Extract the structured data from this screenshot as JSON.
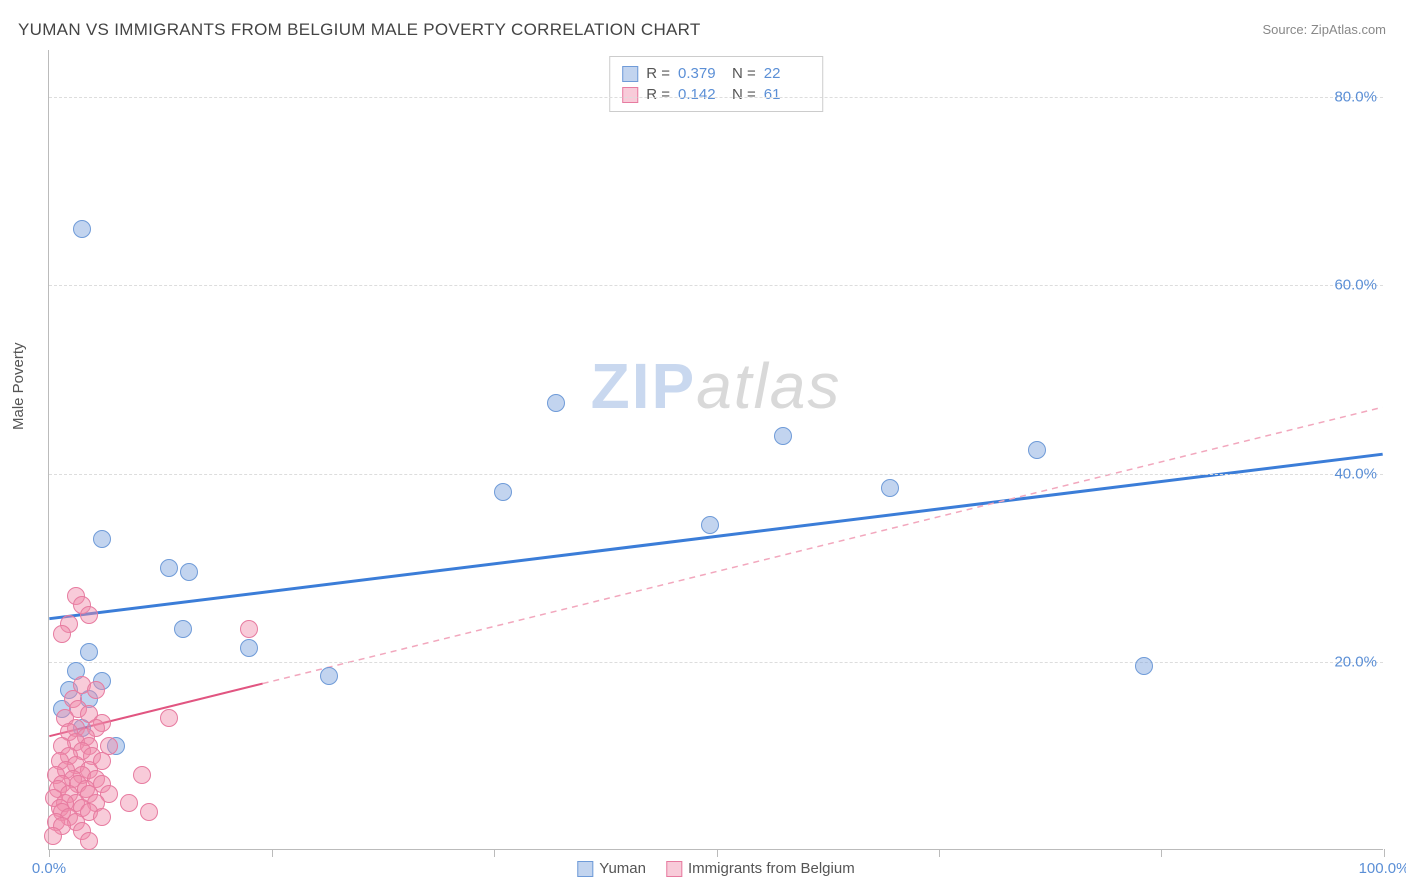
{
  "title": "YUMAN VS IMMIGRANTS FROM BELGIUM MALE POVERTY CORRELATION CHART",
  "source": "Source: ZipAtlas.com",
  "ylabel": "Male Poverty",
  "watermark": {
    "zip": "ZIP",
    "atlas": "atlas"
  },
  "chart": {
    "type": "scatter",
    "xlim": [
      0,
      100
    ],
    "ylim": [
      0,
      85
    ],
    "x_ticks": [
      0,
      16.67,
      33.33,
      50,
      66.67,
      83.33,
      100
    ],
    "x_tick_labels": {
      "0": "0.0%",
      "100": "100.0%"
    },
    "y_gridlines": [
      20,
      40,
      60,
      80
    ],
    "y_tick_labels": {
      "20": "20.0%",
      "40": "40.0%",
      "60": "60.0%",
      "80": "80.0%"
    },
    "background_color": "#ffffff",
    "grid_color": "#dddddd",
    "axis_color": "#bbbbbb",
    "tick_label_color": "#5b8fd6"
  },
  "series": [
    {
      "name": "Yuman",
      "label": "Yuman",
      "color_fill": "rgba(120,160,220,0.45)",
      "color_stroke": "#6f9bd8",
      "marker_radius": 9,
      "R": "0.379",
      "N": "22",
      "trend": {
        "x1": 0,
        "y1": 24.5,
        "x2": 100,
        "y2": 42,
        "solid_until_x": 100,
        "dash_from_x": 100,
        "color": "#3b7dd8",
        "width": 3,
        "dash_color": "#3b7dd8"
      },
      "points": [
        {
          "x": 2.5,
          "y": 66
        },
        {
          "x": 38,
          "y": 47.5
        },
        {
          "x": 55,
          "y": 44
        },
        {
          "x": 74,
          "y": 42.5
        },
        {
          "x": 63,
          "y": 38.5
        },
        {
          "x": 34,
          "y": 38
        },
        {
          "x": 49.5,
          "y": 34.5
        },
        {
          "x": 4,
          "y": 33
        },
        {
          "x": 9,
          "y": 30
        },
        {
          "x": 10.5,
          "y": 29.5
        },
        {
          "x": 10,
          "y": 23.5
        },
        {
          "x": 15,
          "y": 21.5
        },
        {
          "x": 21,
          "y": 18.5
        },
        {
          "x": 82,
          "y": 19.5
        },
        {
          "x": 3,
          "y": 21
        },
        {
          "x": 2,
          "y": 19
        },
        {
          "x": 4,
          "y": 18
        },
        {
          "x": 3,
          "y": 16
        },
        {
          "x": 1.5,
          "y": 17
        },
        {
          "x": 5,
          "y": 11
        },
        {
          "x": 1,
          "y": 15
        },
        {
          "x": 2.5,
          "y": 13
        }
      ]
    },
    {
      "name": "Immigrants from Belgium",
      "label": "Immigrants from Belgium",
      "color_fill": "rgba(240,140,170,0.45)",
      "color_stroke": "#e77ba0",
      "marker_radius": 9,
      "R": "0.142",
      "N": "61",
      "trend": {
        "x1": 0,
        "y1": 12,
        "x2": 100,
        "y2": 47,
        "solid_until_x": 16,
        "dash_from_x": 16,
        "color": "#e15581",
        "width": 2,
        "dash_color": "#f2a7bd"
      },
      "points": [
        {
          "x": 2,
          "y": 27
        },
        {
          "x": 2.5,
          "y": 26
        },
        {
          "x": 3,
          "y": 25
        },
        {
          "x": 1.5,
          "y": 24
        },
        {
          "x": 1,
          "y": 23
        },
        {
          "x": 15,
          "y": 23.5
        },
        {
          "x": 2.5,
          "y": 17.5
        },
        {
          "x": 3.5,
          "y": 17
        },
        {
          "x": 1.8,
          "y": 16
        },
        {
          "x": 2.2,
          "y": 15
        },
        {
          "x": 3,
          "y": 14.5
        },
        {
          "x": 1.2,
          "y": 14
        },
        {
          "x": 4,
          "y": 13.5
        },
        {
          "x": 2,
          "y": 13
        },
        {
          "x": 3.5,
          "y": 13
        },
        {
          "x": 1.5,
          "y": 12.5
        },
        {
          "x": 2.8,
          "y": 12
        },
        {
          "x": 9,
          "y": 14
        },
        {
          "x": 2,
          "y": 11.5
        },
        {
          "x": 1,
          "y": 11
        },
        {
          "x": 3,
          "y": 11
        },
        {
          "x": 4.5,
          "y": 11
        },
        {
          "x": 2.5,
          "y": 10.5
        },
        {
          "x": 1.5,
          "y": 10
        },
        {
          "x": 3.2,
          "y": 10
        },
        {
          "x": 0.8,
          "y": 9.5
        },
        {
          "x": 2,
          "y": 9
        },
        {
          "x": 4,
          "y": 9.5
        },
        {
          "x": 1.3,
          "y": 8.5
        },
        {
          "x": 3,
          "y": 8.5
        },
        {
          "x": 2.5,
          "y": 8
        },
        {
          "x": 0.5,
          "y": 8
        },
        {
          "x": 1.8,
          "y": 7.5
        },
        {
          "x": 3.5,
          "y": 7.5
        },
        {
          "x": 7,
          "y": 8
        },
        {
          "x": 1,
          "y": 7
        },
        {
          "x": 2.2,
          "y": 7
        },
        {
          "x": 4,
          "y": 7
        },
        {
          "x": 0.7,
          "y": 6.5
        },
        {
          "x": 2.8,
          "y": 6.5
        },
        {
          "x": 1.5,
          "y": 6
        },
        {
          "x": 3,
          "y": 6
        },
        {
          "x": 0.4,
          "y": 5.5
        },
        {
          "x": 2,
          "y": 5
        },
        {
          "x": 4.5,
          "y": 6
        },
        {
          "x": 1.2,
          "y": 5
        },
        {
          "x": 3.5,
          "y": 5
        },
        {
          "x": 0.8,
          "y": 4.5
        },
        {
          "x": 2.5,
          "y": 4.5
        },
        {
          "x": 1,
          "y": 4
        },
        {
          "x": 6,
          "y": 5
        },
        {
          "x": 3,
          "y": 4
        },
        {
          "x": 1.5,
          "y": 3.5
        },
        {
          "x": 0.5,
          "y": 3
        },
        {
          "x": 2,
          "y": 3
        },
        {
          "x": 4,
          "y": 3.5
        },
        {
          "x": 1,
          "y": 2.5
        },
        {
          "x": 7.5,
          "y": 4
        },
        {
          "x": 2.5,
          "y": 2
        },
        {
          "x": 0.3,
          "y": 1.5
        },
        {
          "x": 3,
          "y": 1
        }
      ]
    }
  ],
  "legend_bottom": [
    {
      "label": "Yuman",
      "fill": "rgba(120,160,220,0.45)",
      "stroke": "#6f9bd8"
    },
    {
      "label": "Immigrants from Belgium",
      "fill": "rgba(240,140,170,0.45)",
      "stroke": "#e77ba0"
    }
  ]
}
